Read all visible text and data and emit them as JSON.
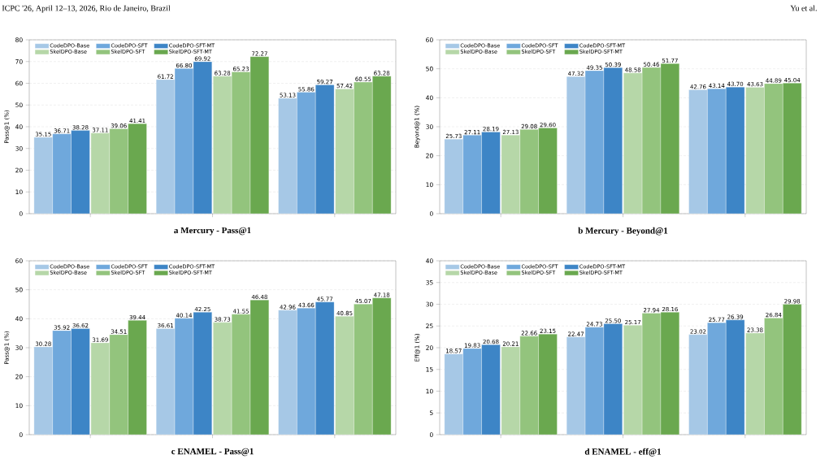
{
  "chart_data": [
    {
      "type": "bar",
      "title": "a Mercury - Pass@1",
      "ylabel": "Pass@1 (%)",
      "categories": [
        null,
        null,
        null
      ],
      "ylim": [
        0,
        80
      ],
      "yticks": [
        0,
        10,
        20,
        30,
        40,
        50,
        60,
        70,
        80
      ],
      "grid": "y",
      "legend": "top left",
      "annotations": [
        "ICPC '26, April 12–13, 2026, Rio de Janeiro, Brazil",
        "Yu et al."
      ],
      "series": [
        {
          "name": "CodeDPO-Base",
          "color": "#a6c8e6",
          "values": [
            35.15,
            61.72,
            53.13
          ],
          "value_labels": [
            "35.15",
            "61.72",
            "53.13"
          ]
        },
        {
          "name": "CodeDPO-SFT",
          "color": "#6fa8dc",
          "values": [
            36.71,
            66.8,
            55.86
          ],
          "value_labels": [
            "36.71",
            "66.80",
            "55.86"
          ]
        },
        {
          "name": "CodeDPO-SFT-MT",
          "color": "#3d85c6",
          "values": [
            38.28,
            69.92,
            59.27
          ],
          "value_labels": [
            "38.28",
            "69.92",
            "59.27"
          ]
        },
        {
          "name": "SkelDPO-Base",
          "color": "#b6d7a8",
          "values": [
            37.11,
            63.28,
            57.42
          ],
          "value_labels": [
            "37.11",
            "63.28",
            "57.42"
          ]
        },
        {
          "name": "SkelDPO-SFT",
          "color": "#93c47d",
          "values": [
            39.06,
            65.23,
            60.55
          ],
          "value_labels": [
            "39.06",
            "65.23",
            "60.55"
          ]
        },
        {
          "name": "SkelDPO-SFT-MT",
          "color": "#6aa84f",
          "values": [
            41.41,
            72.27,
            63.28
          ],
          "value_labels": [
            "41.41",
            "72.27",
            "63.28"
          ]
        }
      ]
    },
    {
      "type": "bar",
      "title": "b Mercury - Beyond@1",
      "ylabel": "Beyond@1 (%)",
      "categories": [
        null,
        null,
        null
      ],
      "ylim": [
        0,
        60
      ],
      "yticks": [
        0,
        10,
        20,
        30,
        40,
        50,
        60
      ],
      "grid": "y",
      "legend": "top left",
      "series": [
        {
          "name": "CodeDPO-Base",
          "color": "#a6c8e6",
          "values": [
            25.73,
            47.32,
            42.76
          ],
          "value_labels": [
            "25.73",
            "47.32",
            "42.76"
          ]
        },
        {
          "name": "CodeDPO-SFT",
          "color": "#6fa8dc",
          "values": [
            27.11,
            49.35,
            43.14
          ],
          "value_labels": [
            "27.11",
            "49.35",
            "43.14"
          ]
        },
        {
          "name": "CodeDPO-SFT-MT",
          "color": "#3d85c6",
          "values": [
            28.19,
            50.39,
            43.7
          ],
          "value_labels": [
            "28.19",
            "50.39",
            "43.70"
          ]
        },
        {
          "name": "SkelDPO-Base",
          "color": "#b6d7a8",
          "values": [
            27.13,
            48.58,
            43.63
          ],
          "value_labels": [
            "27.13",
            "48.58",
            "43.63"
          ]
        },
        {
          "name": "SkelDPO-SFT",
          "color": "#93c47d",
          "values": [
            29.08,
            50.46,
            44.89
          ],
          "value_labels": [
            "29.08",
            "50.46",
            "44.89"
          ]
        },
        {
          "name": "SkelDPO-SFT-MT",
          "color": "#6aa84f",
          "values": [
            29.6,
            51.77,
            45.04
          ],
          "value_labels": [
            "29.60",
            "51.77",
            "45.04"
          ]
        }
      ]
    },
    {
      "type": "bar",
      "title": "c ENAMEL - Pass@1",
      "ylabel": "Pass@1 (%)",
      "categories": [
        null,
        null,
        null
      ],
      "ylim": [
        0,
        60
      ],
      "yticks": [
        0,
        10,
        20,
        30,
        40,
        50,
        60
      ],
      "grid": "y",
      "legend": "top left",
      "series": [
        {
          "name": "CodeDPO-Base",
          "color": "#a6c8e6",
          "values": [
            30.28,
            36.61,
            42.96
          ],
          "value_labels": [
            "30.28",
            "36.61",
            "42.96"
          ]
        },
        {
          "name": "CodeDPO-SFT",
          "color": "#6fa8dc",
          "values": [
            35.92,
            40.14,
            43.66
          ],
          "value_labels": [
            "35.92",
            "40.14",
            "43.66"
          ]
        },
        {
          "name": "CodeDPO-SFT-MT",
          "color": "#3d85c6",
          "values": [
            36.62,
            42.25,
            45.77
          ],
          "value_labels": [
            "36.62",
            "42.25",
            "45.77"
          ]
        },
        {
          "name": "SkelDPO-Base",
          "color": "#b6d7a8",
          "values": [
            31.69,
            38.73,
            40.85
          ],
          "value_labels": [
            "31.69",
            "38.73",
            "40.85"
          ]
        },
        {
          "name": "SkelDPO-SFT",
          "color": "#93c47d",
          "values": [
            34.51,
            41.55,
            45.07
          ],
          "value_labels": [
            "34.51",
            "41.55",
            "45.07"
          ]
        },
        {
          "name": "SkelDPO-SFT-MT",
          "color": "#6aa84f",
          "values": [
            39.44,
            46.48,
            47.18
          ],
          "value_labels": [
            "39.44",
            "46.48",
            "47.18"
          ]
        }
      ]
    },
    {
      "type": "bar",
      "title": "d ENAMEL - eff@1",
      "ylabel": "Eff@1 (%)",
      "categories": [
        null,
        null,
        null
      ],
      "ylim": [
        0,
        40
      ],
      "yticks": [
        0,
        5,
        10,
        15,
        20,
        25,
        30,
        35,
        40
      ],
      "grid": "y",
      "legend": "top left",
      "series": [
        {
          "name": "CodeDPO-Base",
          "color": "#a6c8e6",
          "values": [
            18.57,
            22.47,
            23.02
          ],
          "value_labels": [
            "18.57",
            "22.47",
            "23.02"
          ]
        },
        {
          "name": "CodeDPO-SFT",
          "color": "#6fa8dc",
          "values": [
            19.83,
            24.73,
            25.77
          ],
          "value_labels": [
            "19.83",
            "24.73",
            "25.77"
          ]
        },
        {
          "name": "CodeDPO-SFT-MT",
          "color": "#3d85c6",
          "values": [
            20.68,
            25.5,
            26.39
          ],
          "value_labels": [
            "20.68",
            "25.50",
            "26.39"
          ]
        },
        {
          "name": "SkelDPO-Base",
          "color": "#b6d7a8",
          "values": [
            20.21,
            25.17,
            23.38
          ],
          "value_labels": [
            "20.21",
            "25.17",
            "23.38"
          ]
        },
        {
          "name": "SkelDPO-SFT",
          "color": "#93c47d",
          "values": [
            22.66,
            27.94,
            26.84
          ],
          "value_labels": [
            "22.66",
            "27.94",
            "26.84"
          ]
        },
        {
          "name": "SkelDPO-SFT-MT",
          "color": "#6aa84f",
          "values": [
            23.15,
            28.16,
            29.98
          ],
          "value_labels": [
            "23.15",
            "28.16",
            "29.98"
          ]
        }
      ]
    }
  ]
}
